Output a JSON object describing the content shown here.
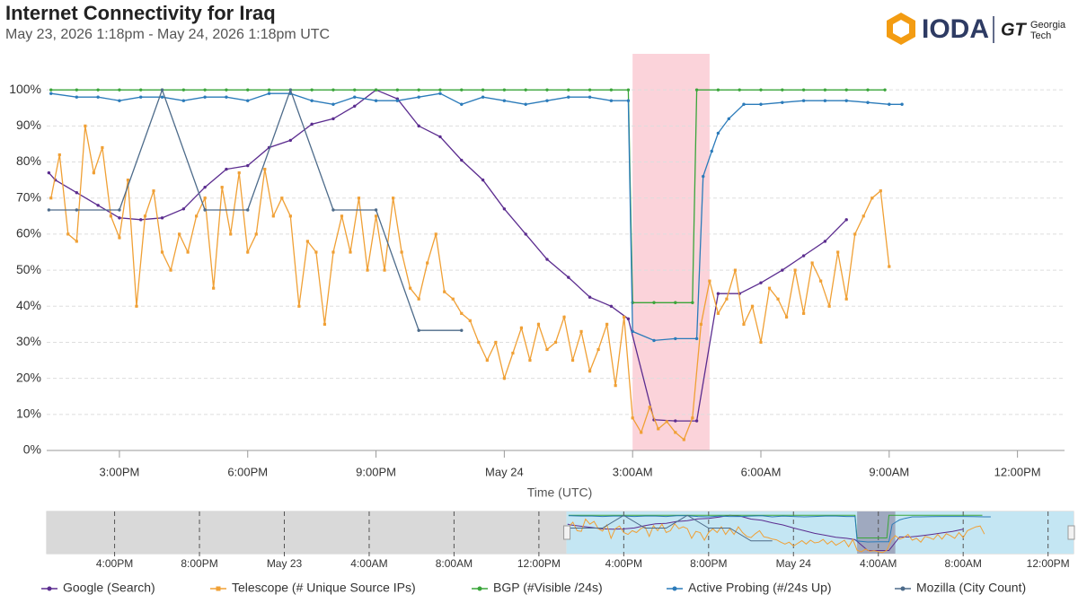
{
  "chart_data": {
    "type": "line",
    "title": "Internet Connectivity for Iraq",
    "subtitle": "May 23, 2026 1:18pm - May 24, 2026 1:18pm UTC",
    "x_label": "Time (UTC)",
    "xlim": [
      13.3,
      37.1
    ],
    "xticks": [
      {
        "value": 15,
        "label": "3:00PM"
      },
      {
        "value": 18,
        "label": "6:00PM"
      },
      {
        "value": 21,
        "label": "9:00PM"
      },
      {
        "value": 24,
        "label": "May 24"
      },
      {
        "value": 27,
        "label": "3:00AM"
      },
      {
        "value": 30,
        "label": "6:00AM"
      },
      {
        "value": 33,
        "label": "9:00AM"
      },
      {
        "value": 36,
        "label": "12:00PM"
      }
    ],
    "ylim": [
      0,
      110
    ],
    "yticks": [
      {
        "value": 0,
        "label": "0%"
      },
      {
        "value": 10,
        "label": "10%"
      },
      {
        "value": 20,
        "label": "20%"
      },
      {
        "value": 30,
        "label": "30%"
      },
      {
        "value": 40,
        "label": "40%"
      },
      {
        "value": 50,
        "label": "50%"
      },
      {
        "value": 60,
        "label": "60%"
      },
      {
        "value": 70,
        "label": "70%"
      },
      {
        "value": 80,
        "label": "80%"
      },
      {
        "value": 90,
        "label": "90%"
      },
      {
        "value": 100,
        "label": "100%"
      }
    ],
    "grid": true,
    "legend": "bottom",
    "highlight_range": [
      27.0,
      28.8
    ],
    "series": [
      {
        "name": "Google (Search)",
        "color": "#5b2c8f",
        "marker": "circle",
        "x": [
          13.35,
          13.5,
          14,
          14.5,
          15,
          15.5,
          16,
          16.5,
          17,
          17.5,
          18,
          18.5,
          19,
          19.5,
          20,
          20.5,
          21,
          21.5,
          22,
          22.5,
          23,
          23.5,
          24,
          24.5,
          25,
          25.5,
          26,
          26.5,
          26.9,
          27.5,
          28,
          28.5,
          29,
          29.5,
          30,
          30.5,
          31,
          31.5,
          32
        ],
        "values": [
          77,
          75,
          71.5,
          68,
          64.5,
          64,
          64.5,
          67,
          73,
          78,
          79,
          84,
          86,
          90.5,
          92,
          95.5,
          100,
          97.5,
          90,
          87,
          80.5,
          75,
          67,
          60,
          53,
          48,
          42.5,
          40,
          36.5,
          8.5,
          8.2,
          8.2,
          43.5,
          43.5,
          46.5,
          50,
          54,
          58,
          64
        ]
      },
      {
        "name": "Telescope (# Unique Source IPs)",
        "color": "#f0a035",
        "marker": "square",
        "x": [
          13.4,
          13.6,
          13.8,
          14,
          14.2,
          14.4,
          14.6,
          14.8,
          15,
          15.2,
          15.4,
          15.6,
          15.8,
          16,
          16.2,
          16.4,
          16.6,
          16.8,
          17,
          17.2,
          17.4,
          17.6,
          17.8,
          18,
          18.2,
          18.4,
          18.6,
          18.8,
          19,
          19.2,
          19.4,
          19.6,
          19.8,
          20,
          20.2,
          20.4,
          20.6,
          20.8,
          21,
          21.2,
          21.4,
          21.6,
          21.8,
          22,
          22.2,
          22.4,
          22.6,
          22.8,
          23,
          23.2,
          23.4,
          23.6,
          23.8,
          24,
          24.2,
          24.4,
          24.6,
          24.8,
          25,
          25.2,
          25.4,
          25.6,
          25.8,
          26,
          26.2,
          26.4,
          26.6,
          26.8,
          27,
          27.2,
          27.4,
          27.6,
          27.8,
          28,
          28.2,
          28.4,
          28.6,
          28.8,
          29,
          29.2,
          29.4,
          29.6,
          29.8,
          30,
          30.2,
          30.4,
          30.6,
          30.8,
          31,
          31.2,
          31.4,
          31.6,
          31.8,
          32,
          32.2,
          32.4,
          32.6,
          32.8,
          33
        ],
        "values": [
          70,
          82,
          60,
          58,
          90,
          77,
          84,
          65,
          59,
          75,
          40,
          65,
          72,
          55,
          50,
          60,
          55,
          65,
          70,
          45,
          73,
          60,
          77,
          55,
          60,
          78,
          65,
          70,
          65,
          40,
          58,
          55,
          35,
          55,
          65,
          55,
          70,
          50,
          65,
          50,
          70,
          55,
          45,
          42,
          52,
          60,
          44,
          42,
          38,
          36,
          30,
          25,
          30,
          20,
          27,
          34,
          25,
          35,
          28,
          30,
          37,
          25,
          33,
          22,
          28,
          35,
          18,
          37,
          9,
          5,
          12,
          6,
          8,
          5,
          3,
          9,
          35,
          47,
          38,
          42,
          50,
          35,
          40,
          30,
          45,
          42,
          37,
          50,
          38,
          52,
          47,
          40,
          55,
          42,
          60,
          65,
          70,
          72,
          51
        ]
      },
      {
        "name": "BGP (#Visible /24s)",
        "color": "#3aa53a",
        "marker": "circle",
        "x": [
          13.4,
          14,
          14.5,
          15,
          15.5,
          16,
          16.5,
          17,
          17.5,
          18,
          18.5,
          19,
          19.5,
          20,
          20.5,
          21,
          21.5,
          22,
          22.5,
          23,
          23.5,
          24,
          24.5,
          25,
          25.5,
          26,
          26.5,
          26.9,
          27,
          27.5,
          28,
          28.4,
          28.5,
          29,
          29.5,
          30,
          30.5,
          31,
          31.5,
          32,
          32.5,
          32.9
        ],
        "values": [
          100,
          100,
          100,
          100,
          100,
          100,
          100,
          100,
          100,
          100,
          100,
          100,
          100,
          100,
          100,
          100,
          100,
          100,
          100,
          100,
          100,
          100,
          100,
          100,
          100,
          100,
          100,
          100,
          41,
          41,
          41,
          41,
          100,
          100,
          100,
          100,
          100,
          100,
          100,
          100,
          100,
          100
        ]
      },
      {
        "name": "Active Probing (#/24s Up)",
        "color": "#2b7bba",
        "marker": "circle",
        "x": [
          13.4,
          14,
          14.5,
          15,
          15.5,
          16,
          16.5,
          17,
          17.5,
          18,
          18.5,
          19,
          19.5,
          20,
          20.5,
          21,
          21.5,
          22,
          22.5,
          23,
          23.5,
          24,
          24.5,
          25,
          25.5,
          26,
          26.5,
          26.9,
          27,
          27.5,
          28,
          28.5,
          28.65,
          28.85,
          29,
          29.25,
          29.6,
          30,
          30.5,
          31,
          31.5,
          32,
          32.5,
          33,
          33.3
        ],
        "values": [
          99,
          98,
          98,
          97,
          98,
          98,
          97,
          98,
          98,
          97,
          99,
          99,
          97,
          96,
          98,
          97,
          97,
          98,
          99,
          96,
          98,
          97,
          96,
          97,
          98,
          98,
          97,
          97,
          33,
          30.5,
          31,
          31,
          76,
          83,
          88,
          92,
          96,
          96,
          96.5,
          97,
          97,
          97,
          96.5,
          96,
          96
        ]
      },
      {
        "name": "Mozilla (City Count)",
        "color": "#4d6b8a",
        "marker": "circle",
        "x": [
          13.35,
          14,
          15,
          16,
          17,
          18,
          19,
          20,
          21,
          22,
          23
        ],
        "values": [
          66.7,
          66.7,
          66.7,
          100,
          66.7,
          66.7,
          100,
          66.7,
          66.7,
          33.3,
          33.3
        ]
      }
    ],
    "navigator": {
      "xlim": [
        -11.2,
        37.2
      ],
      "xticks": [
        {
          "value": -8,
          "label": "4:00PM"
        },
        {
          "value": -4,
          "label": "8:00PM"
        },
        {
          "value": 0,
          "label": "May 23"
        },
        {
          "value": 4,
          "label": "4:00AM"
        },
        {
          "value": 8,
          "label": "8:00AM"
        },
        {
          "value": 12,
          "label": "12:00PM"
        },
        {
          "value": 16,
          "label": "4:00PM"
        },
        {
          "value": 20,
          "label": "8:00PM"
        },
        {
          "value": 24,
          "label": "May 24"
        },
        {
          "value": 28,
          "label": "4:00AM"
        },
        {
          "value": 32,
          "label": "8:00AM"
        },
        {
          "value": 36,
          "label": "12:00PM"
        }
      ]
    }
  },
  "logo": {
    "ioda": "IODA",
    "gt": "GT",
    "georgia": "Georgia",
    "tech": "Tech"
  }
}
